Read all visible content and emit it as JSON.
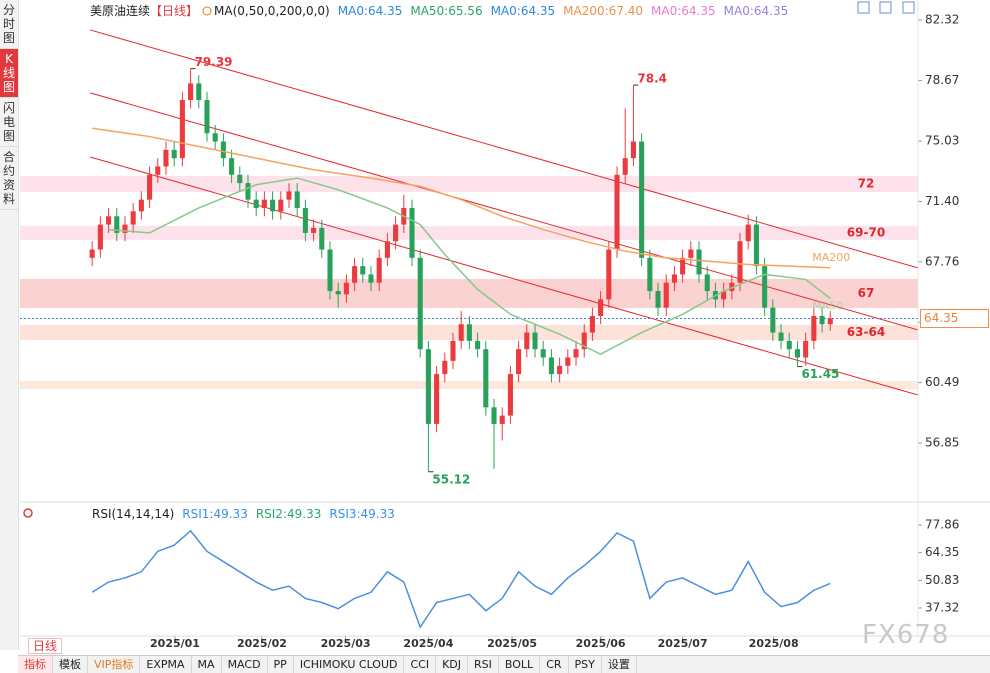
{
  "chart_data": {
    "type": "candlestick",
    "title": "美原油连续",
    "period_tag": "【日线】",
    "indicator_label": "MA(0,50,0,200,0,0)",
    "legend_items": [
      {
        "text": "MA0:64.35",
        "color": "#2f86e0"
      },
      {
        "text": "MA50:65.56",
        "color": "#2aa56c"
      },
      {
        "text": "MA0:64.35",
        "color": "#2f86e0"
      },
      {
        "text": "MA200:67.40",
        "color": "#f0904a"
      },
      {
        "text": "MA0:64.35",
        "color": "#e87ad0"
      },
      {
        "text": "MA0:64.35",
        "color": "#9b7fe0"
      }
    ],
    "ylim": [
      53.42,
      83.04
    ],
    "yticks": [
      82.32,
      78.67,
      75.03,
      {
        "value": 71.4,
        "label": "71.40"
      },
      67.76,
      64.12,
      60.49,
      56.85
    ],
    "xlim": [
      -8.8,
      100.7
    ],
    "xticks": [
      {
        "value": 10.1,
        "label": "2025/01"
      },
      {
        "value": 20.7,
        "label": "2025/02"
      },
      {
        "value": 30.9,
        "label": "2025/03"
      },
      {
        "value": 41,
        "label": "2025/04"
      },
      {
        "value": 51.2,
        "label": "2025/05"
      },
      {
        "value": 62,
        "label": "2025/06"
      },
      {
        "value": 72,
        "label": "2025/07"
      },
      {
        "value": 83.1,
        "label": "2025/08"
      }
    ],
    "up_color": "#ec3b3f",
    "down_color": "#2aa15a",
    "ohlc": [
      [
        68.0,
        69.0,
        67.5,
        68.5
      ],
      [
        68.5,
        70.5,
        68.0,
        70.0
      ],
      [
        70.0,
        71.0,
        69.5,
        70.5
      ],
      [
        70.5,
        71.0,
        69.0,
        69.5
      ],
      [
        69.5,
        70.5,
        69.0,
        70.0
      ],
      [
        70.0,
        71.3,
        69.5,
        70.8
      ],
      [
        70.8,
        72.0,
        70.3,
        71.5
      ],
      [
        71.5,
        73.5,
        71.0,
        73.0
      ],
      [
        73.0,
        74.0,
        72.5,
        73.5
      ],
      [
        73.5,
        75.0,
        73.0,
        74.5
      ],
      [
        74.5,
        75.0,
        73.5,
        74.0
      ],
      [
        74.0,
        78.0,
        73.5,
        77.5
      ],
      [
        77.5,
        79.39,
        77.0,
        78.5
      ],
      [
        78.5,
        79.0,
        77.0,
        77.5
      ],
      [
        77.5,
        78.0,
        75.0,
        75.5
      ],
      [
        75.5,
        76.0,
        74.5,
        75.0
      ],
      [
        75.0,
        75.5,
        73.5,
        74.0
      ],
      [
        74.0,
        74.5,
        72.5,
        73.0
      ],
      [
        73.0,
        73.5,
        72.0,
        72.5
      ],
      [
        72.5,
        73.0,
        71.0,
        71.5
      ],
      [
        71.5,
        72.0,
        70.5,
        71.0
      ],
      [
        71.0,
        72.0,
        70.5,
        71.5
      ],
      [
        71.5,
        72.0,
        70.3,
        70.8
      ],
      [
        70.8,
        72.0,
        70.3,
        71.5
      ],
      [
        71.5,
        72.5,
        71.0,
        72.0
      ],
      [
        72.0,
        72.5,
        70.5,
        71.0
      ],
      [
        71.0,
        71.5,
        69.0,
        69.5
      ],
      [
        69.5,
        70.3,
        69.0,
        69.8
      ],
      [
        69.8,
        70.3,
        68.0,
        68.5
      ],
      [
        68.5,
        69.0,
        65.5,
        66.0
      ],
      [
        66.0,
        66.5,
        65.0,
        65.8
      ],
      [
        65.8,
        67.0,
        65.3,
        66.5
      ],
      [
        66.5,
        68.0,
        66.0,
        67.5
      ],
      [
        67.5,
        68.0,
        66.5,
        67.0
      ],
      [
        67.0,
        67.5,
        66.0,
        66.5
      ],
      [
        66.5,
        68.5,
        66.0,
        68.0
      ],
      [
        68.0,
        69.5,
        67.5,
        69.0
      ],
      [
        69.0,
        70.5,
        68.5,
        70.0
      ],
      [
        70.0,
        71.8,
        69.5,
        71.0
      ],
      [
        71.0,
        71.5,
        67.5,
        68.0
      ],
      [
        68.0,
        68.5,
        62.0,
        62.5
      ],
      [
        62.5,
        63.0,
        55.12,
        58.0
      ],
      [
        58.0,
        61.5,
        57.5,
        61.0
      ],
      [
        61.0,
        62.3,
        60.5,
        61.8
      ],
      [
        61.8,
        63.5,
        61.3,
        63.0
      ],
      [
        63.0,
        64.8,
        62.5,
        64.0
      ],
      [
        64.0,
        64.5,
        62.5,
        63.0
      ],
      [
        63.0,
        63.5,
        62.0,
        62.5
      ],
      [
        62.5,
        63.0,
        58.5,
        59.0
      ],
      [
        59.0,
        59.5,
        55.3,
        58.0
      ],
      [
        58.0,
        59.0,
        57.0,
        58.5
      ],
      [
        58.5,
        61.5,
        58.0,
        61.0
      ],
      [
        61.0,
        63.0,
        60.5,
        62.5
      ],
      [
        62.5,
        64.0,
        62.0,
        63.5
      ],
      [
        63.5,
        64.0,
        62.0,
        62.5
      ],
      [
        62.5,
        63.0,
        61.5,
        62.0
      ],
      [
        62.0,
        62.5,
        60.5,
        61.0
      ],
      [
        61.0,
        62.0,
        60.5,
        61.5
      ],
      [
        61.5,
        62.5,
        61.0,
        62.0
      ],
      [
        62.0,
        63.0,
        61.5,
        62.5
      ],
      [
        62.5,
        64.0,
        62.0,
        63.5
      ],
      [
        63.5,
        65.0,
        63.0,
        64.5
      ],
      [
        64.5,
        66.0,
        64.0,
        65.5
      ],
      [
        65.5,
        69.0,
        65.0,
        68.5
      ],
      [
        68.5,
        73.5,
        68.0,
        73.0
      ],
      [
        73.0,
        77.0,
        72.5,
        74.0
      ],
      [
        74.0,
        78.4,
        73.5,
        75.0
      ],
      [
        75.0,
        75.5,
        67.5,
        68.0
      ],
      [
        68.0,
        68.5,
        65.5,
        66.0
      ],
      [
        66.0,
        66.5,
        64.5,
        65.0
      ],
      [
        65.0,
        67.0,
        64.5,
        66.5
      ],
      [
        66.5,
        67.5,
        66.0,
        67.0
      ],
      [
        67.0,
        68.5,
        66.5,
        68.0
      ],
      [
        68.0,
        69.0,
        67.5,
        68.5
      ],
      [
        68.5,
        69.0,
        66.5,
        67.0
      ],
      [
        67.0,
        67.5,
        65.5,
        66.0
      ],
      [
        66.0,
        66.5,
        65.0,
        65.5
      ],
      [
        65.5,
        66.5,
        65.0,
        66.0
      ],
      [
        66.0,
        67.0,
        65.5,
        66.5
      ],
      [
        66.5,
        69.5,
        66.0,
        69.0
      ],
      [
        69.0,
        70.6,
        68.5,
        70.0
      ],
      [
        70.0,
        70.5,
        67.0,
        67.5
      ],
      [
        67.5,
        68.0,
        64.5,
        65.0
      ],
      [
        65.0,
        65.5,
        63.0,
        63.5
      ],
      [
        63.5,
        64.0,
        62.5,
        63.0
      ],
      [
        63.0,
        63.5,
        62.0,
        62.5
      ],
      [
        62.5,
        63.0,
        61.45,
        62.0
      ],
      [
        62.0,
        63.5,
        61.5,
        63.0
      ],
      [
        63.0,
        65.0,
        62.5,
        64.5
      ],
      [
        64.5,
        65.0,
        63.5,
        64.0
      ],
      [
        64.0,
        64.8,
        63.6,
        64.35
      ]
    ],
    "series": [
      {
        "name": "MA50",
        "color": "#86c98a",
        "x": [
          2,
          7,
          13,
          20,
          25,
          30,
          36,
          40,
          43,
          47,
          51,
          57,
          62,
          67,
          72,
          77,
          82,
          87,
          90
        ],
        "values": [
          69.7,
          69.5,
          71.0,
          72.4,
          72.8,
          72.1,
          71.0,
          70.0,
          68.2,
          66.1,
          64.6,
          63.4,
          62.2,
          63.5,
          64.6,
          66.0,
          67.0,
          66.7,
          65.56
        ]
      },
      {
        "name": "MA200",
        "color": "#f5a35e",
        "x": [
          0,
          7,
          13,
          20,
          27,
          34,
          40,
          45,
          50,
          55,
          60,
          65,
          70,
          75,
          80,
          85,
          90
        ],
        "values": [
          75.8,
          75.3,
          74.7,
          74.0,
          73.3,
          72.8,
          72.3,
          71.5,
          70.5,
          69.7,
          69.0,
          68.4,
          68.0,
          67.8,
          67.6,
          67.5,
          67.4
        ]
      }
    ],
    "zones": [
      {
        "from": 72.93,
        "to": 71.96,
        "label": "72",
        "color": "#fde2ec"
      },
      {
        "from": 69.92,
        "to": 69.08,
        "label": "69-70",
        "color": "#fde2ec"
      },
      {
        "from": 66.73,
        "to": 64.98,
        "label": "67",
        "color": "#fbd2d2"
      },
      {
        "from": 63.96,
        "to": 63.05,
        "label": "63-64",
        "color": "#fde2da"
      },
      {
        "from": 60.59,
        "to": 60.1,
        "color": "#fde8dc"
      }
    ],
    "trendlines": [
      {
        "x0": -0.24,
        "y0": 81.72,
        "x1": 100.7,
        "y1": 67.39
      },
      {
        "x0": -0.24,
        "y0": 77.93,
        "x1": 100.7,
        "y1": 63.66
      },
      {
        "x0": -0.24,
        "y0": 74.07,
        "x1": 100.7,
        "y1": 59.74
      }
    ],
    "trend_color": "#e8262a",
    "annotations": [
      {
        "value": 79.39,
        "x": 12,
        "color": "#e8363c"
      },
      {
        "value": 78.4,
        "x": 66,
        "color": "#e8363c"
      },
      {
        "value": 55.12,
        "x": 41,
        "color": "#2aa15a"
      },
      {
        "value": 61.45,
        "x": 86,
        "color": "#2aa15a"
      }
    ],
    "last_price": 64.35,
    "rsi": {
      "title": "RSI(14,14,14)",
      "legend_items": [
        {
          "text": "RSI1:49.33",
          "color": "#3a8ee6"
        },
        {
          "text": "RSI2:49.33",
          "color": "#2aa56c"
        },
        {
          "text": "RSI3:49.33",
          "color": "#3a8ee6"
        }
      ],
      "ylim": [
        24.13,
        87.63
      ],
      "yticks": [
        77.86,
        64.35,
        50.83,
        37.32
      ],
      "color": "#4a8fe0",
      "x": [
        0,
        2,
        4,
        6,
        8,
        10,
        12,
        14,
        16,
        18,
        20,
        22,
        24,
        26,
        28,
        30,
        32,
        34,
        36,
        38,
        40,
        42,
        44,
        46,
        48,
        50,
        52,
        54,
        56,
        58,
        60,
        62,
        64,
        66,
        68,
        70,
        72,
        74,
        76,
        78,
        80,
        82,
        84,
        86,
        88,
        90
      ],
      "values": [
        45,
        50,
        52,
        55,
        65,
        68,
        75,
        65,
        60,
        55,
        50,
        46,
        48,
        42,
        40,
        37,
        42,
        45,
        55,
        50,
        28,
        40,
        42,
        44,
        36,
        42,
        55,
        48,
        44,
        52,
        58,
        65,
        74,
        70,
        42,
        50,
        52,
        48,
        44,
        46,
        60,
        45,
        38,
        40,
        46,
        49.33
      ]
    }
  },
  "sidebar": [
    "分时图",
    "K线图",
    "闪电图",
    "合约资料"
  ],
  "period": "日线",
  "toolbar": [
    "指标",
    "模板",
    "VIP指标",
    "EXPMA",
    "MA",
    "MACD",
    "PP",
    "ICHIMOKU CLOUD",
    "CCI",
    "KDJ",
    "RSI",
    "BOLL",
    "CR",
    "PSY",
    "设置"
  ],
  "watermark": "FX678"
}
